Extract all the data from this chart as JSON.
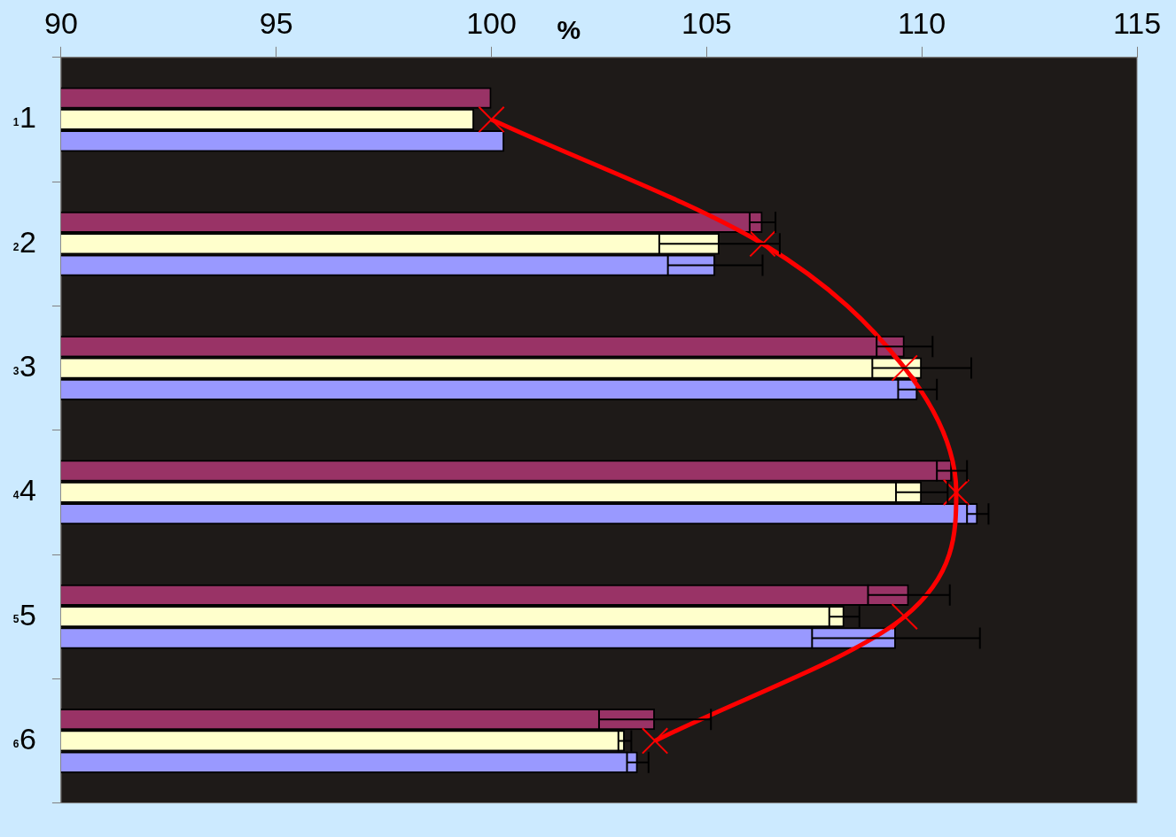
{
  "chart_data": {
    "type": "bar",
    "orientation": "horizontal",
    "xlabel": "%",
    "categories": [
      "1",
      "2",
      "3",
      "4",
      "5",
      "6"
    ],
    "xlim": [
      90,
      115
    ],
    "xticks": [
      90,
      95,
      100,
      105,
      110,
      115
    ],
    "marker": "cross",
    "annotations": [
      "1",
      "2",
      "3",
      "4",
      "5",
      "6"
    ],
    "series": [
      {
        "color": "#993366",
        "values": [
          100.0,
          106.3,
          109.6,
          110.7,
          109.7,
          103.8
        ],
        "errors": [
          null,
          0.3,
          0.65,
          0.35,
          0.95,
          1.3
        ]
      },
      {
        "color": "#ffffcc",
        "values": [
          99.6,
          105.3,
          110.0,
          110.0,
          108.2,
          103.1
        ],
        "errors": [
          null,
          1.4,
          1.15,
          0.6,
          0.35,
          0.15
        ]
      },
      {
        "color": "#9999ff",
        "values": [
          100.3,
          105.2,
          109.9,
          111.3,
          109.4,
          103.4
        ],
        "errors": [
          null,
          1.1,
          0.45,
          0.25,
          1.95,
          0.25
        ]
      },
      {
        "type": "line",
        "color": "#ff0000",
        "values": [
          100.0,
          106.3,
          109.6,
          110.8,
          109.6,
          103.8
        ]
      }
    ]
  }
}
